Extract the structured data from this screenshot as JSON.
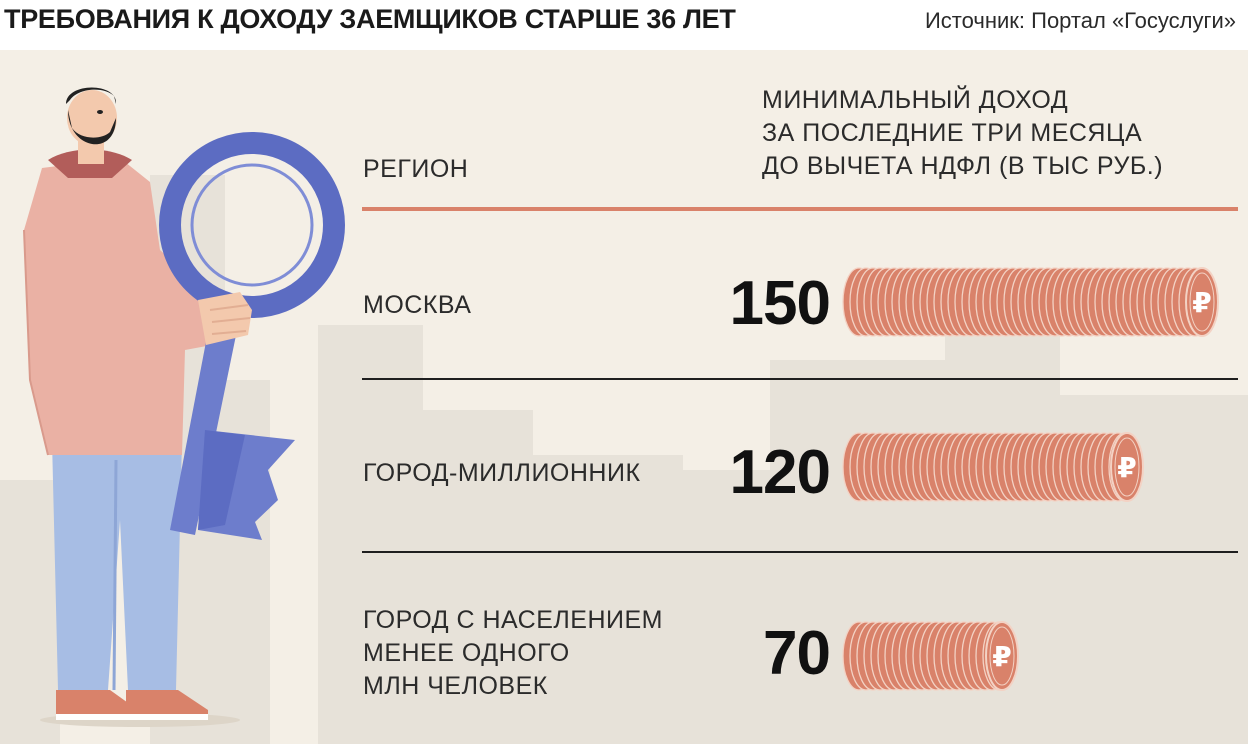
{
  "header": {
    "title": "ТРЕБОВАНИЯ К ДОХОДУ ЗАЕМЩИКОВ СТАРШЕ 36 ЛЕТ",
    "source": "Источник: Портал «Госуслуги»"
  },
  "table_headers": {
    "region": "РЕГИОН",
    "income": "МИНИМАЛЬНЫЙ ДОХОД\nЗА ПОСЛЕДНИЕ ТРИ МЕСЯЦА\nДО ВЫЧЕТА НДФЛ (В ТЫС РУБ.)"
  },
  "chart_data": {
    "type": "bar",
    "categories": [
      "МОСКВА",
      "ГОРОД-МИЛЛИОННИК",
      "ГОРОД С НАСЕЛЕНИЕМ\nМЕНЕЕ ОДНОГО\nМЛН ЧЕЛОВЕК"
    ],
    "values": [
      150,
      120,
      70
    ],
    "value_labels": [
      "150",
      "120",
      "70"
    ],
    "currency_symbol": "₽",
    "xlim": [
      0,
      150
    ],
    "grid": false,
    "legend": "none"
  },
  "colors": {
    "background": "#f4efe6",
    "accent_rule": "#d9826a",
    "coin_fill": "#d9826a",
    "coin_edge": "#f3d2c4",
    "text": "#2b2b2b"
  },
  "icons": [
    "man-with-key-illustration",
    "city-skyline-silhouette",
    "ruble-coin-icon"
  ]
}
